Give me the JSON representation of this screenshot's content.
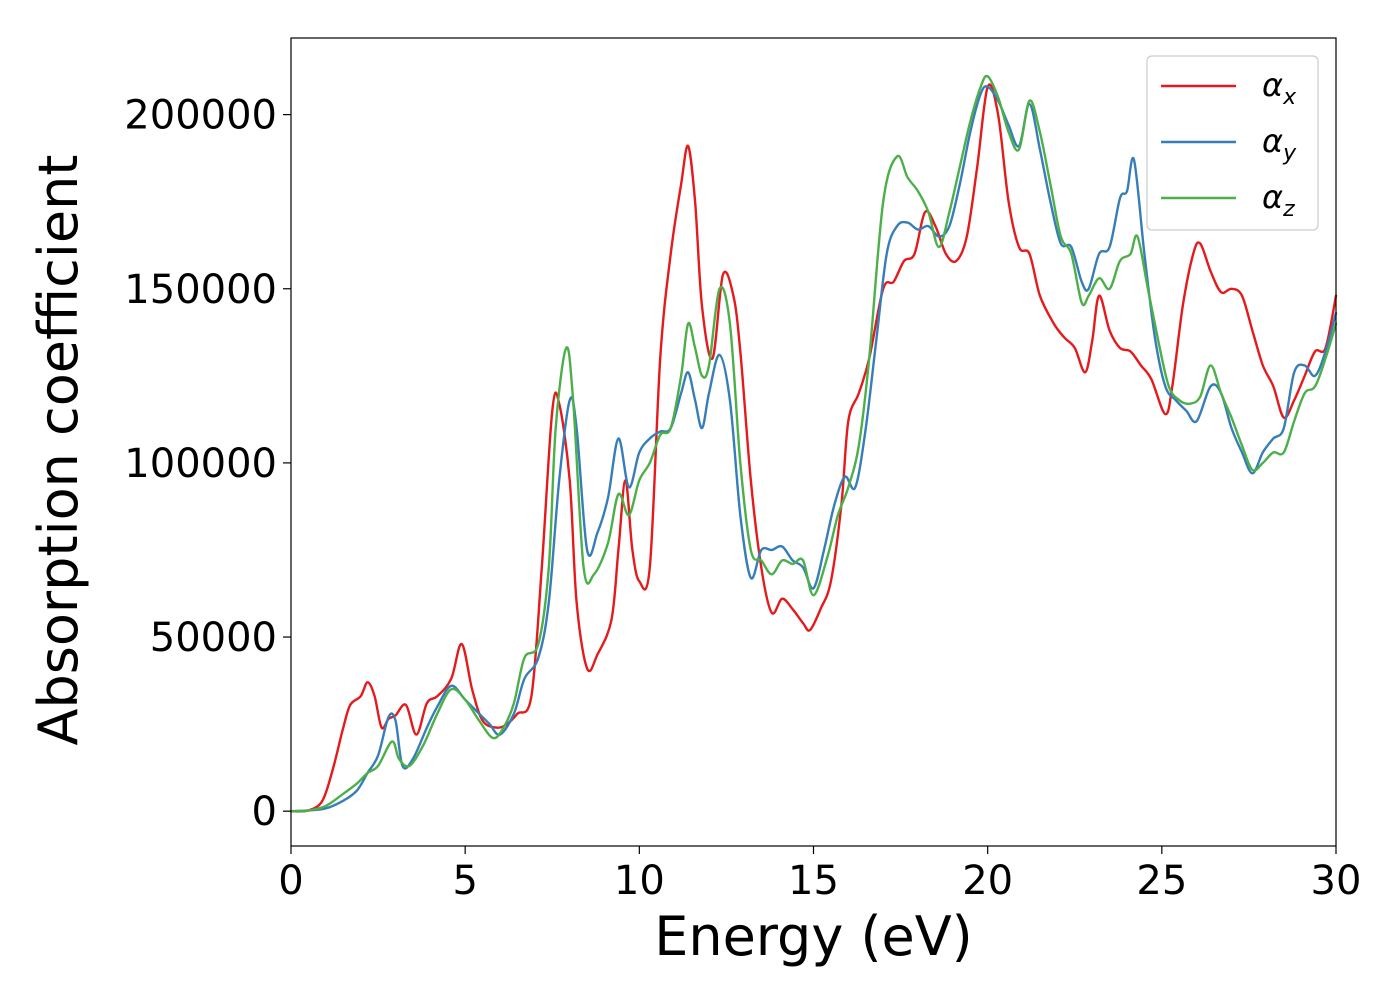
{
  "chart_data": {
    "type": "line",
    "xlabel": "Energy (eV)",
    "ylabel": "Absorption coefficient",
    "xlim": [
      0,
      30
    ],
    "ylim": [
      -10000,
      222000
    ],
    "xticks": [
      "0",
      "5",
      "10",
      "15",
      "20",
      "25",
      "30"
    ],
    "yticks": [
      "0",
      "50000",
      "100000",
      "150000",
      "200000"
    ],
    "grid": false,
    "legend_position": "top-right",
    "series": [
      {
        "name": "α",
        "subscript": "x",
        "color": "#e41a1c",
        "points": [
          [
            0,
            0
          ],
          [
            0.5,
            200
          ],
          [
            0.9,
            3000
          ],
          [
            1.2,
            12000
          ],
          [
            1.5,
            24000
          ],
          [
            1.7,
            30500
          ],
          [
            2.0,
            33000
          ],
          [
            2.2,
            37000
          ],
          [
            2.4,
            33000
          ],
          [
            2.6,
            24000
          ],
          [
            2.8,
            26500
          ],
          [
            3.0,
            27500
          ],
          [
            3.3,
            30500
          ],
          [
            3.6,
            22000
          ],
          [
            3.9,
            31000
          ],
          [
            4.2,
            33000
          ],
          [
            4.6,
            38000
          ],
          [
            4.9,
            48000
          ],
          [
            5.2,
            35000
          ],
          [
            5.5,
            26000
          ],
          [
            5.9,
            24000
          ],
          [
            6.2,
            25000
          ],
          [
            6.5,
            28000
          ],
          [
            6.9,
            33000
          ],
          [
            7.2,
            70000
          ],
          [
            7.5,
            115000
          ],
          [
            7.7,
            117000
          ],
          [
            8.0,
            95000
          ],
          [
            8.2,
            60000
          ],
          [
            8.5,
            41000
          ],
          [
            8.8,
            45000
          ],
          [
            9.2,
            55000
          ],
          [
            9.4,
            75000
          ],
          [
            9.6,
            95000
          ],
          [
            9.8,
            75000
          ],
          [
            10.0,
            66000
          ],
          [
            10.3,
            70000
          ],
          [
            10.6,
            130000
          ],
          [
            10.9,
            160000
          ],
          [
            11.2,
            180000
          ],
          [
            11.4,
            191000
          ],
          [
            11.6,
            175000
          ],
          [
            11.8,
            145000
          ],
          [
            12.1,
            130000
          ],
          [
            12.4,
            154000
          ],
          [
            12.7,
            148000
          ],
          [
            12.9,
            132000
          ],
          [
            13.2,
            95000
          ],
          [
            13.5,
            70000
          ],
          [
            13.8,
            57000
          ],
          [
            14.1,
            61000
          ],
          [
            14.4,
            58000
          ],
          [
            14.7,
            54000
          ],
          [
            14.9,
            52000
          ],
          [
            15.2,
            58000
          ],
          [
            15.5,
            66000
          ],
          [
            15.8,
            88000
          ],
          [
            16.0,
            112000
          ],
          [
            16.3,
            120000
          ],
          [
            16.6,
            130000
          ],
          [
            17.0,
            150000
          ],
          [
            17.3,
            152000
          ],
          [
            17.6,
            158000
          ],
          [
            17.9,
            160000
          ],
          [
            18.2,
            172000
          ],
          [
            18.5,
            168000
          ],
          [
            18.8,
            160000
          ],
          [
            19.1,
            158000
          ],
          [
            19.4,
            165000
          ],
          [
            19.7,
            185000
          ],
          [
            20.0,
            208000
          ],
          [
            20.3,
            200000
          ],
          [
            20.6,
            175000
          ],
          [
            20.9,
            162000
          ],
          [
            21.2,
            160000
          ],
          [
            21.5,
            148000
          ],
          [
            21.9,
            140000
          ],
          [
            22.2,
            136000
          ],
          [
            22.5,
            133000
          ],
          [
            22.8,
            126000
          ],
          [
            23.0,
            135000
          ],
          [
            23.2,
            148000
          ],
          [
            23.5,
            138000
          ],
          [
            23.8,
            133000
          ],
          [
            24.1,
            132000
          ],
          [
            24.4,
            128000
          ],
          [
            24.7,
            124000
          ],
          [
            25.1,
            114000
          ],
          [
            25.3,
            122000
          ],
          [
            25.6,
            145000
          ],
          [
            25.9,
            160000
          ],
          [
            26.1,
            163000
          ],
          [
            26.4,
            155000
          ],
          [
            26.7,
            149000
          ],
          [
            27.0,
            150000
          ],
          [
            27.3,
            148000
          ],
          [
            27.6,
            138000
          ],
          [
            27.9,
            128000
          ],
          [
            28.2,
            122000
          ],
          [
            28.5,
            113000
          ],
          [
            28.8,
            118000
          ],
          [
            29.1,
            125000
          ],
          [
            29.4,
            132000
          ],
          [
            29.7,
            133000
          ],
          [
            30.0,
            148000
          ]
        ]
      },
      {
        "name": "α",
        "subscript": "y",
        "color": "#377eb8",
        "points": [
          [
            0,
            0
          ],
          [
            0.5,
            200
          ],
          [
            1.0,
            800
          ],
          [
            1.5,
            3000
          ],
          [
            1.9,
            6000
          ],
          [
            2.2,
            11000
          ],
          [
            2.5,
            16000
          ],
          [
            2.8,
            27000
          ],
          [
            3.0,
            26000
          ],
          [
            3.2,
            13000
          ],
          [
            3.5,
            15000
          ],
          [
            3.9,
            24000
          ],
          [
            4.2,
            30000
          ],
          [
            4.6,
            36000
          ],
          [
            5.0,
            32000
          ],
          [
            5.4,
            28000
          ],
          [
            5.7,
            25000
          ],
          [
            6.0,
            22000
          ],
          [
            6.4,
            28000
          ],
          [
            6.7,
            38000
          ],
          [
            7.1,
            44000
          ],
          [
            7.4,
            60000
          ],
          [
            7.7,
            95000
          ],
          [
            8.0,
            118000
          ],
          [
            8.2,
            110000
          ],
          [
            8.5,
            75000
          ],
          [
            8.8,
            80000
          ],
          [
            9.1,
            90000
          ],
          [
            9.4,
            107000
          ],
          [
            9.7,
            93000
          ],
          [
            10.0,
            103000
          ],
          [
            10.3,
            107000
          ],
          [
            10.6,
            109000
          ],
          [
            10.9,
            110000
          ],
          [
            11.2,
            120000
          ],
          [
            11.4,
            126000
          ],
          [
            11.6,
            118000
          ],
          [
            11.8,
            110000
          ],
          [
            12.0,
            120000
          ],
          [
            12.3,
            131000
          ],
          [
            12.6,
            118000
          ],
          [
            12.9,
            85000
          ],
          [
            13.2,
            67000
          ],
          [
            13.5,
            75000
          ],
          [
            13.8,
            75000
          ],
          [
            14.1,
            76000
          ],
          [
            14.4,
            72000
          ],
          [
            14.7,
            70000
          ],
          [
            15.0,
            64000
          ],
          [
            15.3,
            75000
          ],
          [
            15.6,
            88000
          ],
          [
            15.9,
            96000
          ],
          [
            16.2,
            93000
          ],
          [
            16.5,
            110000
          ],
          [
            16.8,
            135000
          ],
          [
            17.1,
            160000
          ],
          [
            17.4,
            168000
          ],
          [
            17.7,
            169000
          ],
          [
            18.0,
            167000
          ],
          [
            18.3,
            168000
          ],
          [
            18.6,
            165000
          ],
          [
            18.9,
            168000
          ],
          [
            19.2,
            180000
          ],
          [
            19.5,
            195000
          ],
          [
            19.8,
            206000
          ],
          [
            20.0,
            208000
          ],
          [
            20.3,
            204000
          ],
          [
            20.6,
            197000
          ],
          [
            20.9,
            191000
          ],
          [
            21.2,
            203000
          ],
          [
            21.5,
            190000
          ],
          [
            21.8,
            175000
          ],
          [
            22.1,
            163000
          ],
          [
            22.4,
            162000
          ],
          [
            22.7,
            152000
          ],
          [
            22.9,
            150000
          ],
          [
            23.2,
            160000
          ],
          [
            23.5,
            162000
          ],
          [
            23.8,
            176000
          ],
          [
            24.0,
            178000
          ],
          [
            24.2,
            187000
          ],
          [
            24.5,
            160000
          ],
          [
            24.8,
            136000
          ],
          [
            25.1,
            122000
          ],
          [
            25.4,
            118000
          ],
          [
            25.7,
            115000
          ],
          [
            26.0,
            112000
          ],
          [
            26.4,
            122000
          ],
          [
            26.7,
            120000
          ],
          [
            27.0,
            110000
          ],
          [
            27.3,
            103000
          ],
          [
            27.6,
            97000
          ],
          [
            27.9,
            103000
          ],
          [
            28.2,
            107000
          ],
          [
            28.5,
            110000
          ],
          [
            28.8,
            126000
          ],
          [
            29.1,
            128000
          ],
          [
            29.4,
            125000
          ],
          [
            29.7,
            132000
          ],
          [
            30.0,
            143000
          ]
        ]
      },
      {
        "name": "α",
        "subscript": "z",
        "color": "#4daf4a",
        "points": [
          [
            0,
            0
          ],
          [
            0.5,
            200
          ],
          [
            1.0,
            1500
          ],
          [
            1.5,
            5000
          ],
          [
            1.9,
            8000
          ],
          [
            2.2,
            11000
          ],
          [
            2.5,
            13000
          ],
          [
            2.9,
            20000
          ],
          [
            3.1,
            15000
          ],
          [
            3.4,
            13000
          ],
          [
            3.8,
            19000
          ],
          [
            4.2,
            28000
          ],
          [
            4.6,
            35000
          ],
          [
            5.0,
            32000
          ],
          [
            5.4,
            26000
          ],
          [
            5.8,
            21000
          ],
          [
            6.1,
            24000
          ],
          [
            6.4,
            31000
          ],
          [
            6.7,
            44000
          ],
          [
            7.1,
            48000
          ],
          [
            7.4,
            70000
          ],
          [
            7.6,
            110000
          ],
          [
            7.9,
            133000
          ],
          [
            8.1,
            118000
          ],
          [
            8.4,
            70000
          ],
          [
            8.7,
            68000
          ],
          [
            9.1,
            77000
          ],
          [
            9.4,
            91000
          ],
          [
            9.7,
            85000
          ],
          [
            10.0,
            95000
          ],
          [
            10.3,
            100000
          ],
          [
            10.6,
            108000
          ],
          [
            10.9,
            110000
          ],
          [
            11.2,
            125000
          ],
          [
            11.4,
            140000
          ],
          [
            11.6,
            133000
          ],
          [
            11.8,
            125000
          ],
          [
            12.0,
            128000
          ],
          [
            12.3,
            150000
          ],
          [
            12.6,
            140000
          ],
          [
            12.9,
            100000
          ],
          [
            13.2,
            75000
          ],
          [
            13.5,
            72000
          ],
          [
            13.8,
            68000
          ],
          [
            14.1,
            72000
          ],
          [
            14.4,
            71000
          ],
          [
            14.7,
            72000
          ],
          [
            15.0,
            62000
          ],
          [
            15.4,
            73000
          ],
          [
            15.7,
            85000
          ],
          [
            16.0,
            93000
          ],
          [
            16.3,
            105000
          ],
          [
            16.6,
            130000
          ],
          [
            17.0,
            175000
          ],
          [
            17.4,
            188000
          ],
          [
            17.7,
            182000
          ],
          [
            18.0,
            178000
          ],
          [
            18.3,
            172000
          ],
          [
            18.6,
            162000
          ],
          [
            18.9,
            172000
          ],
          [
            19.2,
            185000
          ],
          [
            19.5,
            198000
          ],
          [
            19.8,
            208000
          ],
          [
            20.0,
            211000
          ],
          [
            20.3,
            205000
          ],
          [
            20.6,
            195000
          ],
          [
            20.9,
            190000
          ],
          [
            21.2,
            204000
          ],
          [
            21.5,
            195000
          ],
          [
            21.8,
            180000
          ],
          [
            22.1,
            165000
          ],
          [
            22.4,
            160000
          ],
          [
            22.7,
            146000
          ],
          [
            22.9,
            148000
          ],
          [
            23.2,
            153000
          ],
          [
            23.5,
            150000
          ],
          [
            23.8,
            158000
          ],
          [
            24.1,
            160000
          ],
          [
            24.3,
            165000
          ],
          [
            24.6,
            150000
          ],
          [
            24.9,
            135000
          ],
          [
            25.2,
            122000
          ],
          [
            25.5,
            118000
          ],
          [
            25.8,
            117000
          ],
          [
            26.1,
            119000
          ],
          [
            26.4,
            128000
          ],
          [
            26.7,
            120000
          ],
          [
            27.0,
            113000
          ],
          [
            27.3,
            105000
          ],
          [
            27.6,
            98000
          ],
          [
            27.9,
            100000
          ],
          [
            28.2,
            103000
          ],
          [
            28.5,
            103000
          ],
          [
            28.8,
            112000
          ],
          [
            29.1,
            120000
          ],
          [
            29.4,
            122000
          ],
          [
            29.7,
            130000
          ],
          [
            30.0,
            140000
          ]
        ]
      }
    ]
  }
}
